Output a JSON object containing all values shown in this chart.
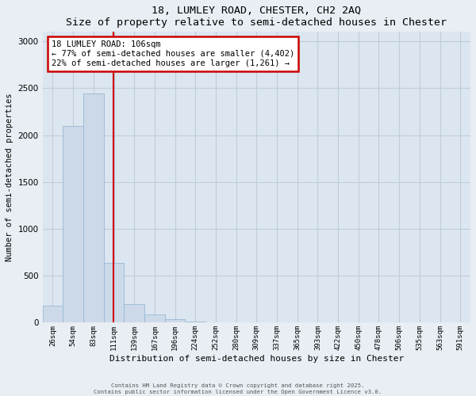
{
  "title": "18, LUMLEY ROAD, CHESTER, CH2 2AQ",
  "subtitle": "Size of property relative to semi-detached houses in Chester",
  "xlabel": "Distribution of semi-detached houses by size in Chester",
  "ylabel": "Number of semi-detached properties",
  "bar_labels": [
    "26sqm",
    "54sqm",
    "83sqm",
    "111sqm",
    "139sqm",
    "167sqm",
    "196sqm",
    "224sqm",
    "252sqm",
    "280sqm",
    "309sqm",
    "337sqm",
    "365sqm",
    "393sqm",
    "422sqm",
    "450sqm",
    "478sqm",
    "506sqm",
    "535sqm",
    "563sqm",
    "591sqm"
  ],
  "bar_values": [
    185,
    2100,
    2440,
    640,
    200,
    85,
    35,
    15,
    5,
    0,
    0,
    0,
    0,
    0,
    0,
    0,
    0,
    0,
    0,
    0,
    0
  ],
  "bar_color": "#ccd9e8",
  "bar_edge_color": "#99b8d4",
  "ylim": [
    0,
    3100
  ],
  "yticks": [
    0,
    500,
    1000,
    1500,
    2000,
    2500,
    3000
  ],
  "property_line_x": 2.97,
  "property_line_color": "#cc0000",
  "annotation_title": "18 LUMLEY ROAD: 106sqm",
  "annotation_line1": "← 77% of semi-detached houses are smaller (4,402)",
  "annotation_line2": "22% of semi-detached houses are larger (1,261) →",
  "annotation_box_color": "#ffffff",
  "annotation_box_edge": "#cc0000",
  "footer_line1": "Contains HM Land Registry data © Crown copyright and database right 2025.",
  "footer_line2": "Contains public sector information licensed under the Open Government Licence v3.0.",
  "background_color": "#e8eef4",
  "plot_background_color": "#dce6f0",
  "grid_color": "#c0cdd8"
}
